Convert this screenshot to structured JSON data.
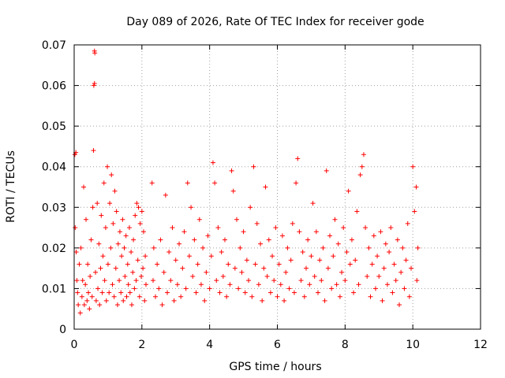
{
  "chart_data": {
    "type": "scatter",
    "title": "Day 089 of 2026, Rate Of TEC Index for receiver gode",
    "xlabel": "GPS time / hours",
    "ylabel": "ROTI / TECUs",
    "xlim": [
      0,
      12
    ],
    "ylim": [
      0,
      0.07
    ],
    "x_ticks": [
      0,
      2,
      4,
      6,
      8,
      10,
      12
    ],
    "y_ticks": [
      0,
      0.01,
      0.02,
      0.03,
      0.04,
      0.05,
      0.06,
      0.07
    ],
    "x_tick_labels": [
      "0",
      "2",
      "4",
      "6",
      "8",
      "10",
      "12"
    ],
    "y_tick_labels": [
      "0",
      "0.01",
      "0.02",
      "0.03",
      "0.04",
      "0.05",
      "0.06",
      "0.07"
    ],
    "grid": true,
    "marker": "+",
    "series": [
      {
        "name": "ROTI",
        "color": "#ff0000",
        "points": [
          [
            0.02,
            0.043
          ],
          [
            0.05,
            0.0435
          ],
          [
            0.03,
            0.025
          ],
          [
            0.06,
            0.019
          ],
          [
            0.08,
            0.012
          ],
          [
            0.1,
            0.009
          ],
          [
            0.12,
            0.006
          ],
          [
            0.15,
            0.016
          ],
          [
            0.18,
            0.004
          ],
          [
            0.2,
            0.02
          ],
          [
            0.23,
            0.008
          ],
          [
            0.25,
            0.012
          ],
          [
            0.28,
            0.035
          ],
          [
            0.3,
            0.006
          ],
          [
            0.33,
            0.011
          ],
          [
            0.35,
            0.027
          ],
          [
            0.38,
            0.007
          ],
          [
            0.4,
            0.016
          ],
          [
            0.42,
            0.009
          ],
          [
            0.45,
            0.005
          ],
          [
            0.47,
            0.013
          ],
          [
            0.5,
            0.022
          ],
          [
            0.53,
            0.008
          ],
          [
            0.55,
            0.03
          ],
          [
            0.58,
            0.06
          ],
          [
            0.6,
            0.0605
          ],
          [
            0.6,
            0.0685
          ],
          [
            0.61,
            0.068
          ],
          [
            0.63,
            0.014
          ],
          [
            0.65,
            0.007
          ],
          [
            0.57,
            0.044
          ],
          [
            0.68,
            0.031
          ],
          [
            0.7,
            0.01
          ],
          [
            0.73,
            0.021
          ],
          [
            0.75,
            0.006
          ],
          [
            0.78,
            0.015
          ],
          [
            0.8,
            0.028
          ],
          [
            0.83,
            0.009
          ],
          [
            0.85,
            0.018
          ],
          [
            0.88,
            0.036
          ],
          [
            0.9,
            0.012
          ],
          [
            0.93,
            0.025
          ],
          [
            0.95,
            0.007
          ],
          [
            0.98,
            0.04
          ],
          [
            1.0,
            0.016
          ],
          [
            1.03,
            0.009
          ],
          [
            1.05,
            0.031
          ],
          [
            1.08,
            0.02
          ],
          [
            1.1,
            0.038
          ],
          [
            1.13,
            0.011
          ],
          [
            1.15,
            0.026
          ],
          [
            1.18,
            0.008
          ],
          [
            1.2,
            0.034
          ],
          [
            1.23,
            0.015
          ],
          [
            1.25,
            0.029
          ],
          [
            1.28,
            0.006
          ],
          [
            1.3,
            0.021
          ],
          [
            1.33,
            0.012
          ],
          [
            1.35,
            0.024
          ],
          [
            1.38,
            0.009
          ],
          [
            1.4,
            0.018
          ],
          [
            1.43,
            0.027
          ],
          [
            1.45,
            0.007
          ],
          [
            1.48,
            0.02
          ],
          [
            1.5,
            0.013
          ],
          [
            1.53,
            0.023
          ],
          [
            1.55,
            0.008
          ],
          [
            1.58,
            0.016
          ],
          [
            1.6,
            0.011
          ],
          [
            1.63,
            0.025
          ],
          [
            1.65,
            0.009
          ],
          [
            1.68,
            0.019
          ],
          [
            1.7,
            0.006
          ],
          [
            1.73,
            0.014
          ],
          [
            1.75,
            0.022
          ],
          [
            1.78,
            0.01
          ],
          [
            1.8,
            0.028
          ],
          [
            1.83,
            0.012
          ],
          [
            1.85,
            0.031
          ],
          [
            1.88,
            0.017
          ],
          [
            1.9,
            0.03
          ],
          [
            1.93,
            0.008
          ],
          [
            1.95,
            0.026
          ],
          [
            1.98,
            0.013
          ],
          [
            2.0,
            0.029
          ],
          [
            2.03,
            0.015
          ],
          [
            2.05,
            0.024
          ],
          [
            2.08,
            0.007
          ],
          [
            2.1,
            0.018
          ],
          [
            2.12,
            0.011
          ],
          [
            2.3,
            0.036
          ],
          [
            2.33,
            0.012
          ],
          [
            2.35,
            0.02
          ],
          [
            2.4,
            0.008
          ],
          [
            2.45,
            0.016
          ],
          [
            2.5,
            0.01
          ],
          [
            2.55,
            0.022
          ],
          [
            2.6,
            0.006
          ],
          [
            2.65,
            0.014
          ],
          [
            2.7,
            0.033
          ],
          [
            2.75,
            0.009
          ],
          [
            2.8,
            0.019
          ],
          [
            2.85,
            0.012
          ],
          [
            2.9,
            0.025
          ],
          [
            2.95,
            0.007
          ],
          [
            3.0,
            0.017
          ],
          [
            3.05,
            0.011
          ],
          [
            3.1,
            0.021
          ],
          [
            3.15,
            0.008
          ],
          [
            3.2,
            0.015
          ],
          [
            3.25,
            0.024
          ],
          [
            3.3,
            0.01
          ],
          [
            3.35,
            0.036
          ],
          [
            3.4,
            0.018
          ],
          [
            3.45,
            0.03
          ],
          [
            3.5,
            0.013
          ],
          [
            3.55,
            0.022
          ],
          [
            3.6,
            0.009
          ],
          [
            3.65,
            0.016
          ],
          [
            3.7,
            0.027
          ],
          [
            3.75,
            0.011
          ],
          [
            3.8,
            0.02
          ],
          [
            3.85,
            0.007
          ],
          [
            3.9,
            0.014
          ],
          [
            3.95,
            0.023
          ],
          [
            4.0,
            0.01
          ],
          [
            4.05,
            0.018
          ],
          [
            4.1,
            0.041
          ],
          [
            4.15,
            0.036
          ],
          [
            4.2,
            0.012
          ],
          [
            4.25,
            0.025
          ],
          [
            4.3,
            0.009
          ],
          [
            4.35,
            0.019
          ],
          [
            4.4,
            0.013
          ],
          [
            4.45,
            0.022
          ],
          [
            4.5,
            0.008
          ],
          [
            4.55,
            0.016
          ],
          [
            4.6,
            0.011
          ],
          [
            4.65,
            0.039
          ],
          [
            4.7,
            0.034
          ],
          [
            4.75,
            0.015
          ],
          [
            4.8,
            0.027
          ],
          [
            4.85,
            0.01
          ],
          [
            4.9,
            0.02
          ],
          [
            4.95,
            0.014
          ],
          [
            5.0,
            0.024
          ],
          [
            5.05,
            0.009
          ],
          [
            5.1,
            0.017
          ],
          [
            5.15,
            0.012
          ],
          [
            5.2,
            0.03
          ],
          [
            5.25,
            0.008
          ],
          [
            5.3,
            0.04
          ],
          [
            5.35,
            0.016
          ],
          [
            5.4,
            0.026
          ],
          [
            5.45,
            0.011
          ],
          [
            5.5,
            0.021
          ],
          [
            5.55,
            0.007
          ],
          [
            5.6,
            0.015
          ],
          [
            5.65,
            0.035
          ],
          [
            5.7,
            0.013
          ],
          [
            5.75,
            0.022
          ],
          [
            5.8,
            0.009
          ],
          [
            5.85,
            0.018
          ],
          [
            5.9,
            0.012
          ],
          [
            5.95,
            0.025
          ],
          [
            6.0,
            0.008
          ],
          [
            6.05,
            0.016
          ],
          [
            6.1,
            0.011
          ],
          [
            6.15,
            0.023
          ],
          [
            6.2,
            0.007
          ],
          [
            6.25,
            0.014
          ],
          [
            6.3,
            0.02
          ],
          [
            6.35,
            0.01
          ],
          [
            6.4,
            0.017
          ],
          [
            6.45,
            0.026
          ],
          [
            6.5,
            0.009
          ],
          [
            6.55,
            0.036
          ],
          [
            6.6,
            0.042
          ],
          [
            6.65,
            0.024
          ],
          [
            6.7,
            0.012
          ],
          [
            6.75,
            0.019
          ],
          [
            6.8,
            0.008
          ],
          [
            6.85,
            0.015
          ],
          [
            6.9,
            0.022
          ],
          [
            6.95,
            0.011
          ],
          [
            7.0,
            0.018
          ],
          [
            7.05,
            0.031
          ],
          [
            7.1,
            0.013
          ],
          [
            7.15,
            0.024
          ],
          [
            7.2,
            0.009
          ],
          [
            7.25,
            0.017
          ],
          [
            7.3,
            0.012
          ],
          [
            7.35,
            0.02
          ],
          [
            7.4,
            0.007
          ],
          [
            7.45,
            0.039
          ],
          [
            7.5,
            0.015
          ],
          [
            7.55,
            0.023
          ],
          [
            7.6,
            0.01
          ],
          [
            7.65,
            0.018
          ],
          [
            7.7,
            0.027
          ],
          [
            7.75,
            0.011
          ],
          [
            7.8,
            0.021
          ],
          [
            7.85,
            0.008
          ],
          [
            7.9,
            0.014
          ],
          [
            7.95,
            0.025
          ],
          [
            8.0,
            0.012
          ],
          [
            8.05,
            0.019
          ],
          [
            8.1,
            0.034
          ],
          [
            8.15,
            0.016
          ],
          [
            8.2,
            0.022
          ],
          [
            8.25,
            0.009
          ],
          [
            8.3,
            0.017
          ],
          [
            8.35,
            0.029
          ],
          [
            8.4,
            0.011
          ],
          [
            8.45,
            0.038
          ],
          [
            8.5,
            0.04
          ],
          [
            8.55,
            0.043
          ],
          [
            8.6,
            0.025
          ],
          [
            8.65,
            0.013
          ],
          [
            8.7,
            0.02
          ],
          [
            8.75,
            0.008
          ],
          [
            8.8,
            0.016
          ],
          [
            8.85,
            0.023
          ],
          [
            8.9,
            0.01
          ],
          [
            8.95,
            0.018
          ],
          [
            9.0,
            0.013
          ],
          [
            9.05,
            0.024
          ],
          [
            9.1,
            0.007
          ],
          [
            9.15,
            0.015
          ],
          [
            9.2,
            0.021
          ],
          [
            9.25,
            0.011
          ],
          [
            9.3,
            0.019
          ],
          [
            9.35,
            0.025
          ],
          [
            9.4,
            0.009
          ],
          [
            9.45,
            0.016
          ],
          [
            9.5,
            0.012
          ],
          [
            9.55,
            0.022
          ],
          [
            9.6,
            0.006
          ],
          [
            9.65,
            0.014
          ],
          [
            9.7,
            0.02
          ],
          [
            9.75,
            0.01
          ],
          [
            9.8,
            0.017
          ],
          [
            9.85,
            0.026
          ],
          [
            9.9,
            0.008
          ],
          [
            9.95,
            0.015
          ],
          [
            10.0,
            0.04
          ],
          [
            10.05,
            0.029
          ],
          [
            10.1,
            0.035
          ],
          [
            10.12,
            0.012
          ],
          [
            10.15,
            0.02
          ]
        ]
      }
    ]
  }
}
